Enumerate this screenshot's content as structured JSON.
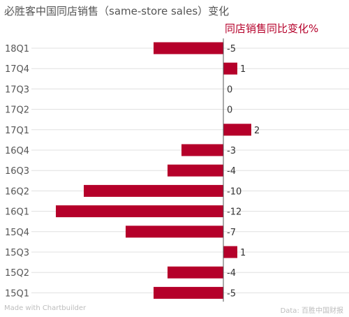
{
  "title": "必胜客中国同店销售（same-store sales）变化",
  "colors": {
    "bar": "#b5002a",
    "series_label": "#b5002a",
    "grid": "#e0e0e0",
    "axis": "#555555",
    "text": "#333333"
  },
  "chart_data": {
    "type": "bar",
    "orientation": "horizontal",
    "categories": [
      "18Q1",
      "17Q4",
      "17Q3",
      "17Q2",
      "17Q1",
      "16Q4",
      "16Q3",
      "16Q2",
      "16Q1",
      "15Q4",
      "15Q3",
      "15Q2",
      "15Q1"
    ],
    "series": [
      {
        "name": "同店销售同比变化%",
        "values": [
          -5,
          1,
          0,
          0,
          2,
          -3,
          -4,
          -10,
          -12,
          -7,
          1,
          -4,
          -5
        ]
      }
    ],
    "data_labels": [
      "-5",
      "1",
      "0",
      "0",
      "2",
      "-3",
      "-4",
      "-10",
      "-12",
      "-7",
      "1",
      "-4",
      "-5"
    ],
    "xlim": [
      -12,
      2
    ],
    "grid": true,
    "legend": "top-right"
  },
  "footer": {
    "credit": "Made with Chartbuilder",
    "source": "Data: 百胜中国财报"
  }
}
